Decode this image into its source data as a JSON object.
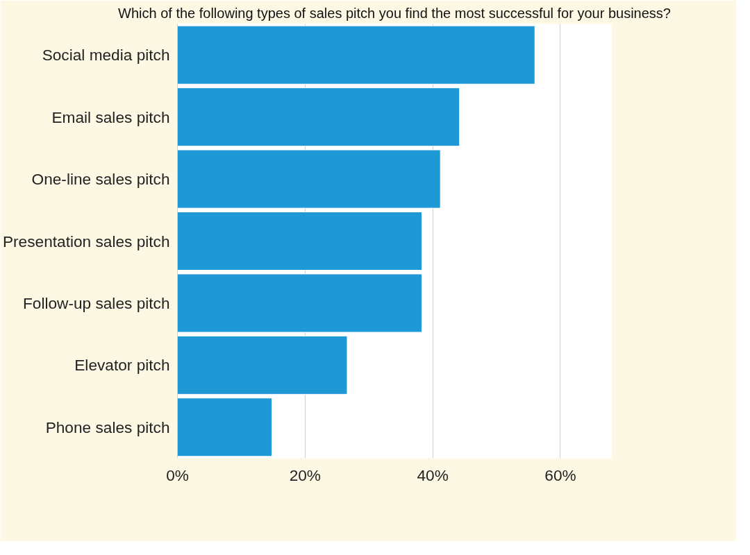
{
  "chart_data": {
    "type": "bar",
    "orientation": "horizontal",
    "title": "Which of the following types of sales pitch you find the most successful for your business?",
    "categories": [
      "Social media pitch",
      "Email sales pitch",
      "One-line sales pitch",
      "Presentation sales pitch",
      "Follow-up sales pitch",
      "Elevator pitch",
      "Phone sales pitch"
    ],
    "values": [
      56,
      44.2,
      41.2,
      38.3,
      38.3,
      26.6,
      14.8
    ],
    "color": "#1f98d6",
    "xlim": [
      0,
      68
    ],
    "xticks": [
      {
        "value": 0,
        "label": "0%"
      },
      {
        "value": 20,
        "label": "20%"
      },
      {
        "value": 40,
        "label": "40%"
      },
      {
        "value": 60,
        "label": "60%"
      }
    ],
    "grid": "x"
  }
}
